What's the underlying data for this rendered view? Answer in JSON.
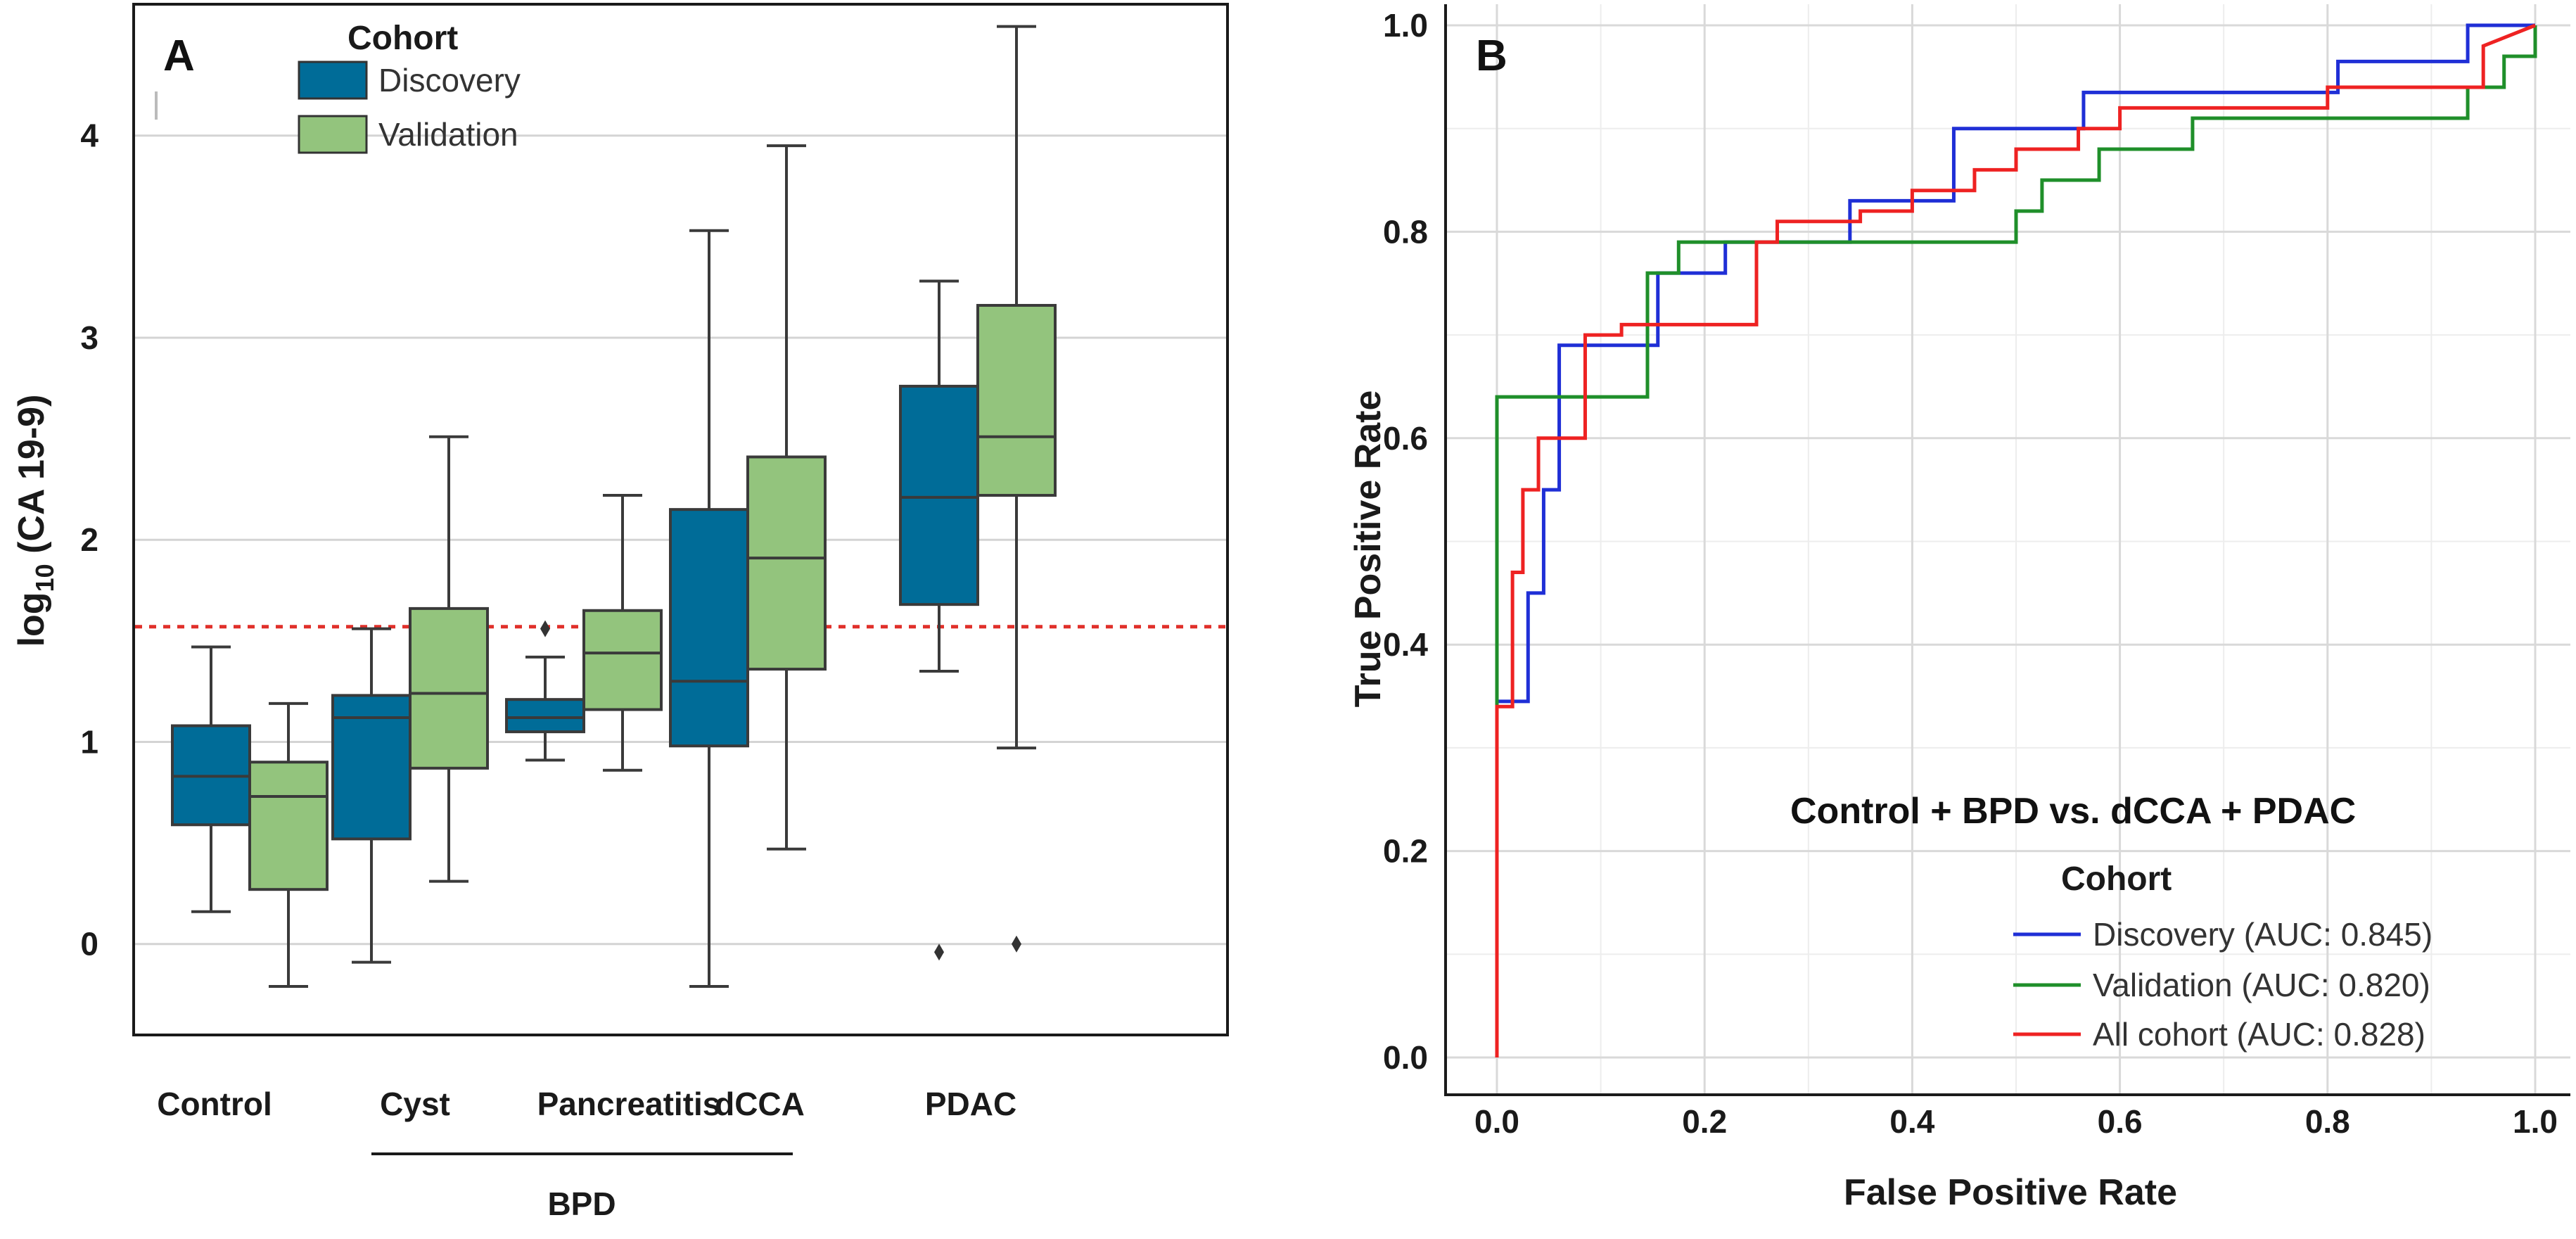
{
  "chart_data": [
    {
      "panel": "A",
      "type": "box",
      "ylabel_prefix": "log",
      "ylabel_sub": "10",
      "ylabel_suffix": " (CA 19-9)",
      "ylim": [
        -0.45,
        4.65
      ],
      "yticks": [
        0,
        1,
        2,
        3,
        4
      ],
      "grid": true,
      "legend": {
        "title": "Cohort",
        "placement": "top-left"
      },
      "series": [
        {
          "name": "Discovery",
          "color": "#006c98"
        },
        {
          "name": "Validation",
          "color": "#93c47d"
        }
      ],
      "categories": [
        "Control",
        "Cyst",
        "Pancreatitis",
        "dCCA",
        "PDAC"
      ],
      "group_label": "BPD",
      "threshold": 1.57,
      "boxes": [
        {
          "category": "Control",
          "series": "Discovery",
          "q1": 0.59,
          "median": 0.83,
          "q3": 1.08,
          "whisker_low": 0.16,
          "whisker_high": 1.47,
          "outliers": []
        },
        {
          "category": "Control",
          "series": "Validation",
          "q1": 0.27,
          "median": 0.73,
          "q3": 0.9,
          "whisker_low": -0.21,
          "whisker_high": 1.19,
          "outliers": []
        },
        {
          "category": "Cyst",
          "series": "Discovery",
          "q1": 0.52,
          "median": 1.12,
          "q3": 1.23,
          "whisker_low": -0.09,
          "whisker_high": 1.56,
          "outliers": []
        },
        {
          "category": "Cyst",
          "series": "Validation",
          "q1": 0.87,
          "median": 1.24,
          "q3": 1.66,
          "whisker_low": 0.31,
          "whisker_high": 2.51,
          "outliers": []
        },
        {
          "category": "Pancreatitis",
          "series": "Discovery",
          "q1": 1.05,
          "median": 1.12,
          "q3": 1.21,
          "whisker_low": 0.91,
          "whisker_high": 1.42,
          "outliers": [
            1.56
          ]
        },
        {
          "category": "Pancreatitis",
          "series": "Validation",
          "q1": 1.16,
          "median": 1.44,
          "q3": 1.65,
          "whisker_low": 0.86,
          "whisker_high": 2.22,
          "outliers": []
        },
        {
          "category": "dCCA",
          "series": "Discovery",
          "q1": 0.98,
          "median": 1.3,
          "q3": 2.15,
          "whisker_low": -0.21,
          "whisker_high": 3.53,
          "outliers": []
        },
        {
          "category": "dCCA",
          "series": "Validation",
          "q1": 1.36,
          "median": 1.91,
          "q3": 2.41,
          "whisker_low": 0.47,
          "whisker_high": 3.95,
          "outliers": []
        },
        {
          "category": "PDAC",
          "series": "Discovery",
          "q1": 1.68,
          "median": 2.21,
          "q3": 2.76,
          "whisker_low": 1.35,
          "whisker_high": 3.28,
          "outliers": [
            -0.04
          ]
        },
        {
          "category": "PDAC",
          "series": "Validation",
          "q1": 2.22,
          "median": 2.51,
          "q3": 3.16,
          "whisker_low": 0.97,
          "whisker_high": 4.54,
          "outliers": [
            0.0
          ]
        }
      ]
    },
    {
      "panel": "B",
      "type": "line",
      "title": "Control + BPD vs. dCCA + PDAC",
      "xlabel": "False Positive Rate",
      "ylabel": "True Positive Rate",
      "xlim": [
        0,
        1
      ],
      "ylim": [
        0,
        1
      ],
      "xticks": [
        "0.0",
        "0.2",
        "0.4",
        "0.6",
        "0.8",
        "1.0"
      ],
      "yticks": [
        "0.0",
        "0.2",
        "0.4",
        "0.6",
        "0.8",
        "1.0"
      ],
      "grid": true,
      "legend": {
        "title": "Cohort",
        "placement": "bottom-right"
      },
      "series": [
        {
          "name": "Discovery (AUC: 0.845)",
          "color": "#1f2fd6",
          "x": [
            0,
            0,
            0.03,
            0.03,
            0.045,
            0.045,
            0.06,
            0.06,
            0.09,
            0.09,
            0.12,
            0.12,
            0.155,
            0.155,
            0.19,
            0.19,
            0.22,
            0.22,
            0.34,
            0.34,
            0.44,
            0.44,
            0.565,
            0.565,
            0.81,
            0.81,
            0.935,
            0.935,
            1.0
          ],
          "y": [
            0,
            0.345,
            0.345,
            0.45,
            0.45,
            0.55,
            0.55,
            0.69,
            0.69,
            0.69,
            0.69,
            0.69,
            0.69,
            0.76,
            0.76,
            0.76,
            0.76,
            0.79,
            0.79,
            0.83,
            0.83,
            0.9,
            0.9,
            0.935,
            0.935,
            0.965,
            0.965,
            1.0,
            1.0
          ]
        },
        {
          "name": "Validation (AUC: 0.820)",
          "color": "#1f8f2a",
          "x": [
            0,
            0,
            0.145,
            0.145,
            0.175,
            0.175,
            0.5,
            0.5,
            0.525,
            0.525,
            0.55,
            0.55,
            0.58,
            0.58,
            0.67,
            0.67,
            0.935,
            0.935,
            0.97,
            0.97,
            1.0,
            1.0
          ],
          "y": [
            0,
            0.64,
            0.64,
            0.76,
            0.76,
            0.79,
            0.79,
            0.82,
            0.82,
            0.85,
            0.85,
            0.85,
            0.85,
            0.88,
            0.88,
            0.91,
            0.91,
            0.94,
            0.94,
            0.97,
            0.97,
            1.0
          ]
        },
        {
          "name": "All cohort (AUC: 0.828)",
          "color": "#ee2222",
          "x": [
            0,
            0,
            0.015,
            0.015,
            0.025,
            0.025,
            0.04,
            0.04,
            0.085,
            0.085,
            0.12,
            0.12,
            0.25,
            0.25,
            0.27,
            0.27,
            0.35,
            0.35,
            0.4,
            0.4,
            0.42,
            0.42,
            0.46,
            0.46,
            0.5,
            0.5,
            0.56,
            0.56,
            0.6,
            0.6,
            0.8,
            0.8,
            0.95,
            0.95,
            1.0
          ],
          "y": [
            0,
            0.34,
            0.34,
            0.47,
            0.47,
            0.55,
            0.55,
            0.6,
            0.6,
            0.7,
            0.7,
            0.71,
            0.71,
            0.79,
            0.79,
            0.81,
            0.81,
            0.82,
            0.82,
            0.84,
            0.84,
            0.84,
            0.84,
            0.86,
            0.86,
            0.88,
            0.88,
            0.9,
            0.9,
            0.92,
            0.92,
            0.94,
            0.94,
            0.98,
            1.0
          ]
        }
      ]
    }
  ]
}
